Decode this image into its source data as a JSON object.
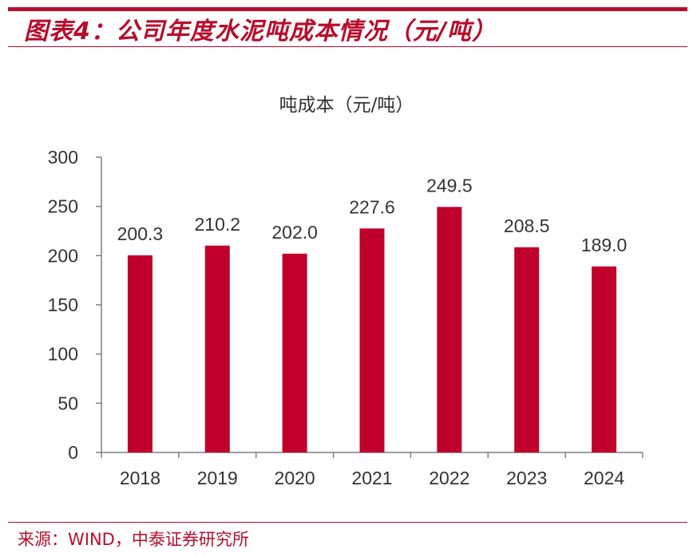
{
  "header": {
    "report_title": "图表4：公司年度水泥吨成本情况（元/吨）"
  },
  "source": "来源：WIND，中泰证券研究所",
  "colors": {
    "accent": "#b80d2b",
    "bar": "#c0002b"
  },
  "chart_data": {
    "type": "bar",
    "title": "吨成本（元/吨）",
    "categories": [
      "2018",
      "2019",
      "2020",
      "2021",
      "2022",
      "2023",
      "2024"
    ],
    "values": [
      200.3,
      210.2,
      202.0,
      227.6,
      249.5,
      208.5,
      189.0
    ],
    "value_labels": [
      "200.3",
      "210.2",
      "202.0",
      "227.6",
      "249.5",
      "208.5",
      "189.0"
    ],
    "yticks": [
      "0",
      "50",
      "100",
      "150",
      "200",
      "250",
      "300"
    ],
    "ylim": [
      0,
      300
    ],
    "xlabel": "",
    "ylabel": "",
    "grid": false,
    "legend": "none"
  }
}
